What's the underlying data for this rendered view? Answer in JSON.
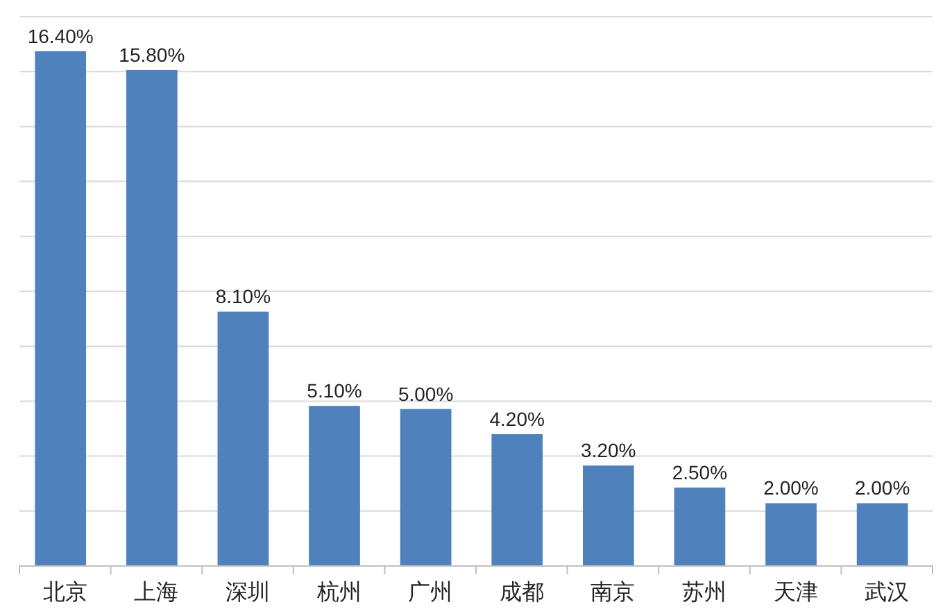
{
  "chart_data": {
    "type": "bar",
    "categories": [
      "北京",
      "上海",
      "深圳",
      "杭州",
      "广州",
      "成都",
      "南京",
      "苏州",
      "天津",
      "武汉"
    ],
    "values": [
      16.4,
      15.8,
      8.1,
      5.1,
      5.0,
      4.2,
      3.2,
      2.5,
      2.0,
      2.0
    ],
    "value_labels": [
      "16.40%",
      "15.80%",
      "8.10%",
      "5.10%",
      "5.00%",
      "4.20%",
      "3.20%",
      "2.50%",
      "2.00%",
      "2.00%"
    ],
    "color": "#4f81bd",
    "ylim": [
      0,
      17.5
    ],
    "yticks": [
      {
        "value": 0,
        "label": null
      },
      {
        "value": 1.75,
        "label": null
      },
      {
        "value": 3.5,
        "label": null
      },
      {
        "value": 5.25,
        "label": null
      },
      {
        "value": 7,
        "label": null
      },
      {
        "value": 8.75,
        "label": null
      },
      {
        "value": 10.5,
        "label": null
      },
      {
        "value": 12.25,
        "label": null
      },
      {
        "value": 14,
        "label": null
      },
      {
        "value": 15.75,
        "label": null
      },
      {
        "value": 17.5,
        "label": null
      }
    ],
    "grid": "y",
    "tick_labels": "x"
  }
}
